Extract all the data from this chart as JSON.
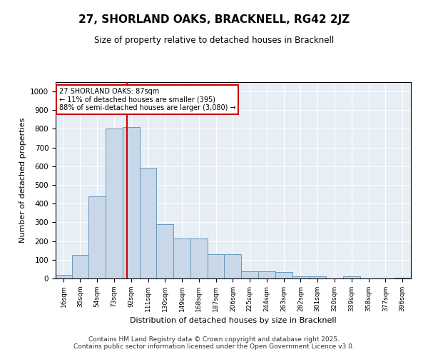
{
  "title": "27, SHORLAND OAKS, BRACKNELL, RG42 2JZ",
  "subtitle": "Size of property relative to detached houses in Bracknell",
  "xlabel": "Distribution of detached houses by size in Bracknell",
  "ylabel": "Number of detached properties",
  "bar_color": "#c8d8e8",
  "bar_edge_color": "#6699bb",
  "background_color": "#e8eef5",
  "grid_color": "#ffffff",
  "annotation_box_color": "#cc0000",
  "vline_color": "#cc0000",
  "vline_x": 87,
  "annotation_text": "27 SHORLAND OAKS: 87sqm\n← 11% of detached houses are smaller (395)\n88% of semi-detached houses are larger (3,080) →",
  "footer_text": "Contains HM Land Registry data © Crown copyright and database right 2025.\nContains public sector information licensed under the Open Government Licence v3.0.",
  "categories": [
    "16sqm",
    "35sqm",
    "54sqm",
    "73sqm",
    "92sqm",
    "111sqm",
    "130sqm",
    "149sqm",
    "168sqm",
    "187sqm",
    "206sqm",
    "225sqm",
    "244sqm",
    "263sqm",
    "282sqm",
    "301sqm",
    "320sqm",
    "339sqm",
    "358sqm",
    "377sqm",
    "396sqm"
  ],
  "bin_edges": [
    7,
    25,
    44,
    63,
    82,
    101,
    120,
    139,
    158,
    177,
    196,
    215,
    234,
    253,
    272,
    291,
    310,
    329,
    348,
    367,
    386,
    405
  ],
  "values": [
    20,
    125,
    440,
    800,
    810,
    590,
    290,
    215,
    215,
    130,
    130,
    40,
    40,
    35,
    10,
    10,
    0,
    10,
    0,
    0,
    5
  ],
  "ylim": [
    0,
    1050
  ],
  "yticks": [
    0,
    100,
    200,
    300,
    400,
    500,
    600,
    700,
    800,
    900,
    1000
  ],
  "fig_facecolor": "#ffffff"
}
